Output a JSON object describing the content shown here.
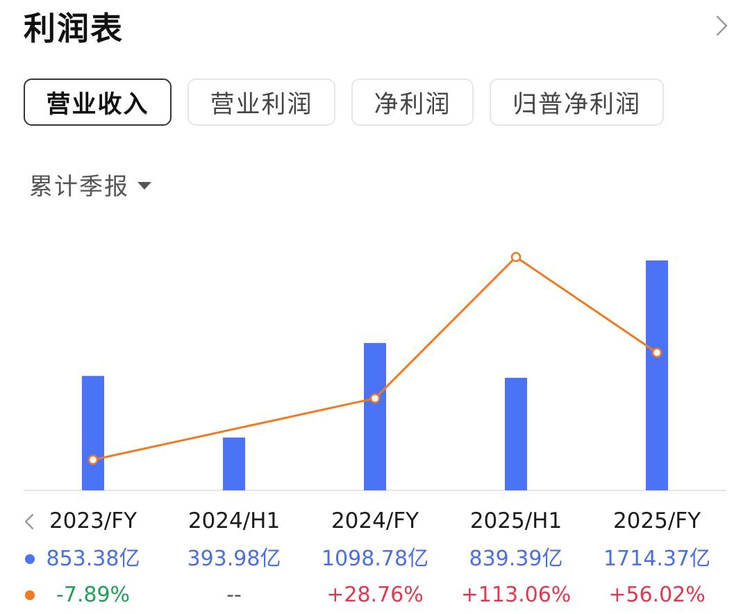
{
  "header": {
    "title": "利润表"
  },
  "tabs": [
    {
      "label": "营业收入",
      "active": true
    },
    {
      "label": "营业利润",
      "active": false
    },
    {
      "label": "净利润",
      "active": false
    },
    {
      "label": "归普净利润",
      "active": false
    }
  ],
  "period_selector": {
    "label": "累计季报"
  },
  "colors": {
    "bar": "#4a74f5",
    "line": "#ee7a22",
    "positive": "#e0384e",
    "negative": "#1fa05a"
  },
  "chart_data": {
    "type": "bar",
    "categories": [
      "2023/FY",
      "2024/H1",
      "2024/FY",
      "2025/H1",
      "2025/FY"
    ],
    "series": [
      {
        "type": "bar",
        "values": [
          853.38,
          393.98,
          1098.78,
          839.39,
          1714.37
        ],
        "labels": [
          "853.38亿",
          "393.98亿",
          "1098.78亿",
          "839.39亿",
          "1714.37亿"
        ]
      },
      {
        "type": "line",
        "values": [
          -7.89,
          null,
          28.76,
          113.06,
          56.02
        ],
        "labels": [
          "-7.89%",
          "--",
          "+28.76%",
          "+113.06%",
          "+56.02%"
        ]
      }
    ]
  }
}
